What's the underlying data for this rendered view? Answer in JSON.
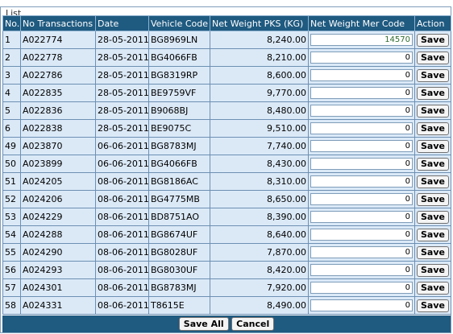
{
  "panel": {
    "legend": "List"
  },
  "columns": [
    "No.",
    "No Transactions",
    "Date",
    "Vehicle Code",
    "Net Weight PKS (KG)",
    "Net Weight Mer Code",
    "Action"
  ],
  "rows": [
    {
      "no": "1",
      "trans": "A022774",
      "date": "28-05-2011",
      "vehicle": "BG8969LN",
      "pks": "8,240.00",
      "mer": "14570",
      "action": "Save"
    },
    {
      "no": "2",
      "trans": "A022778",
      "date": "28-05-2011",
      "vehicle": "BG4066FB",
      "pks": "8,210.00",
      "mer": "0",
      "action": "Save"
    },
    {
      "no": "3",
      "trans": "A022786",
      "date": "28-05-2011",
      "vehicle": "BG8319RP",
      "pks": "8,600.00",
      "mer": "0",
      "action": "Save"
    },
    {
      "no": "4",
      "trans": "A022835",
      "date": "28-05-2011",
      "vehicle": "BE9759VF",
      "pks": "9,770.00",
      "mer": "0",
      "action": "Save"
    },
    {
      "no": "5",
      "trans": "A022836",
      "date": "28-05-2011",
      "vehicle": "B9068BJ",
      "pks": "8,480.00",
      "mer": "0",
      "action": "Save"
    },
    {
      "no": "6",
      "trans": "A022838",
      "date": "28-05-2011",
      "vehicle": "BE9075C",
      "pks": "9,510.00",
      "mer": "0",
      "action": "Save"
    },
    {
      "no": "49",
      "trans": "A023870",
      "date": "06-06-2011",
      "vehicle": "BG8783MJ",
      "pks": "7,740.00",
      "mer": "0",
      "action": "Save"
    },
    {
      "no": "50",
      "trans": "A023899",
      "date": "06-06-2011",
      "vehicle": "BG4066FB",
      "pks": "8,430.00",
      "mer": "0",
      "action": "Save"
    },
    {
      "no": "51",
      "trans": "A024205",
      "date": "08-06-2011",
      "vehicle": "BG8186AC",
      "pks": "8,310.00",
      "mer": "0",
      "action": "Save"
    },
    {
      "no": "52",
      "trans": "A024206",
      "date": "08-06-2011",
      "vehicle": "BG4775MB",
      "pks": "8,650.00",
      "mer": "0",
      "action": "Save"
    },
    {
      "no": "53",
      "trans": "A024229",
      "date": "08-06-2011",
      "vehicle": "BD8751AO",
      "pks": "8,390.00",
      "mer": "0",
      "action": "Save"
    },
    {
      "no": "54",
      "trans": "A024288",
      "date": "08-06-2011",
      "vehicle": "BG8674UF",
      "pks": "8,640.00",
      "mer": "0",
      "action": "Save"
    },
    {
      "no": "55",
      "trans": "A024290",
      "date": "08-06-2011",
      "vehicle": "BG8028UF",
      "pks": "7,870.00",
      "mer": "0",
      "action": "Save"
    },
    {
      "no": "56",
      "trans": "A024293",
      "date": "08-06-2011",
      "vehicle": "BG8030UF",
      "pks": "8,420.00",
      "mer": "0",
      "action": "Save"
    },
    {
      "no": "57",
      "trans": "A024301",
      "date": "08-06-2011",
      "vehicle": "BG8783MJ",
      "pks": "7,920.00",
      "mer": "0",
      "action": "Save"
    },
    {
      "no": "58",
      "trans": "A024331",
      "date": "08-06-2011",
      "vehicle": "T8615E",
      "pks": "8,490.00",
      "mer": "0",
      "action": "Save"
    }
  ],
  "footer": {
    "save_all_label": "Save All",
    "cancel_label": "Cancel"
  },
  "colors": {
    "header_bg": "#1f5a80",
    "row_bg": "#dbe9f7",
    "header_text": "#ffffff"
  }
}
